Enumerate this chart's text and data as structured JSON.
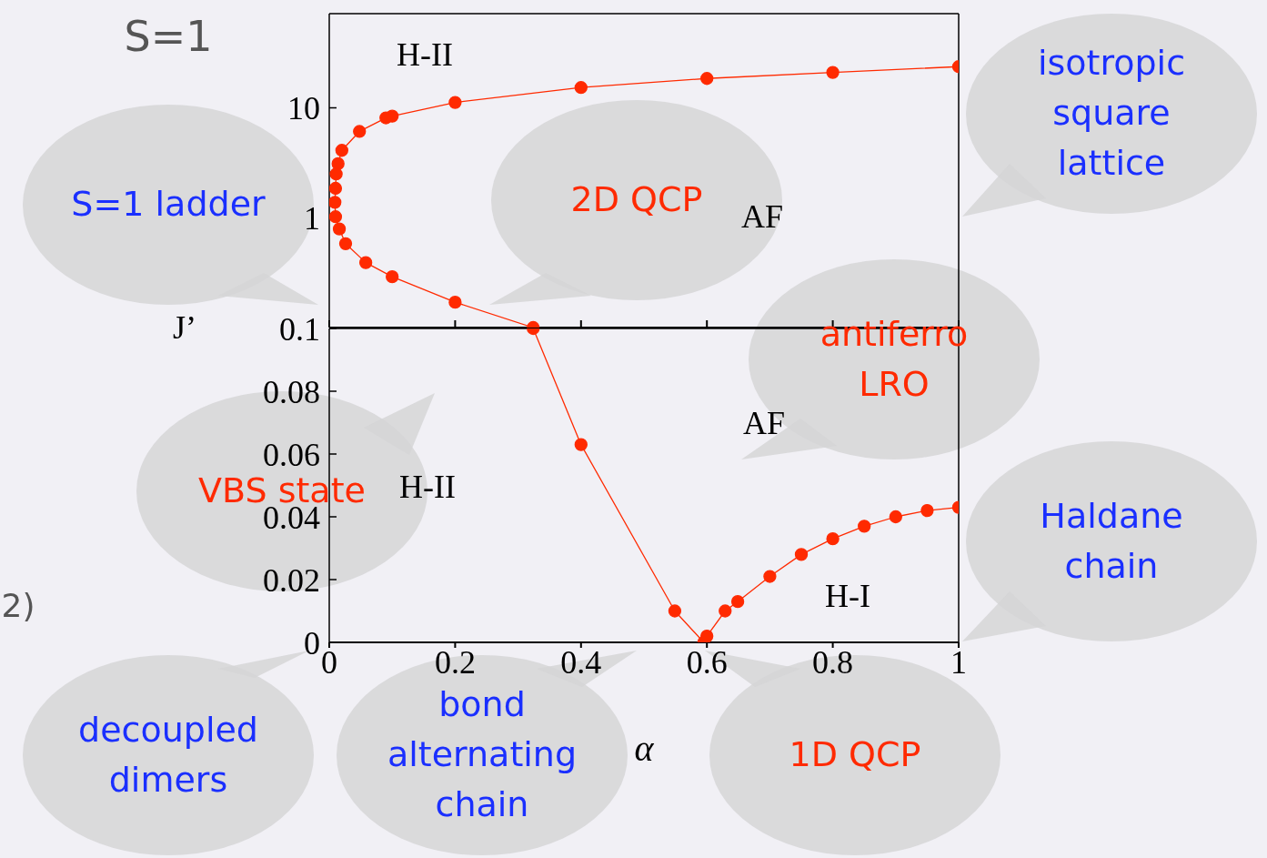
{
  "chart_data": [
    {
      "type": "line",
      "title": "S=1",
      "x": [
        1,
        0.8,
        0.6,
        0.4,
        0.2,
        0.1,
        0.09,
        0.048,
        0.02,
        0.014,
        0.011,
        0.01,
        0.009,
        0.01,
        0.016,
        0.026,
        0.058,
        0.1,
        0.2,
        0.324
      ],
      "series": [
        {
          "color": "#ff2a00",
          "values": [
            23.7,
            21,
            18.5,
            15.3,
            11.2,
            8.4,
            8.1,
            6.1,
            4.1,
            3.1,
            2.5,
            1.85,
            1.38,
            1.02,
            0.79,
            0.58,
            0.39,
            0.29,
            0.17,
            0.1
          ]
        }
      ],
      "log": true,
      "xlim": [
        0,
        1
      ],
      "xticks": [
        {
          "value": 0,
          "label": null
        },
        {
          "value": 0.2,
          "label": null
        },
        {
          "value": 0.4,
          "label": null
        },
        {
          "value": 0.6,
          "label": null
        },
        {
          "value": 0.8,
          "label": null
        },
        {
          "value": 1,
          "label": null
        }
      ],
      "ylim": [
        0.1,
        72
      ],
      "yticks": [
        {
          "value": 0.1,
          "label": null
        },
        1,
        10
      ],
      "tick_labels": "y",
      "marker": "circle",
      "line_style": "solid",
      "annotations": [
        "H-II",
        "AF",
        "S=1 ladder",
        "2D QCP",
        "isotropic square lattice"
      ]
    },
    {
      "type": "line",
      "xlabel": "α",
      "ylabel": "J’",
      "x": [
        0.324,
        0.4,
        0.549,
        0.595,
        0.6,
        0.629,
        0.649,
        0.7,
        0.75,
        0.8,
        0.85,
        0.9,
        0.95,
        1
      ],
      "series": [
        {
          "color": "#ff2a00",
          "values": [
            0.1,
            0.063,
            0.01,
            0,
            0.002,
            0.01,
            0.013,
            0.021,
            0.028,
            0.033,
            0.037,
            0.04,
            0.042,
            0.043
          ]
        }
      ],
      "xlim": [
        0,
        1
      ],
      "xticks": [
        0,
        0.2,
        0.4,
        0.6,
        0.8,
        1
      ],
      "ylim": [
        0,
        0.1
      ],
      "yticks": [
        0,
        0.02,
        0.04,
        0.06,
        0.08,
        0.1
      ],
      "marker": "circle",
      "line_style": "solid",
      "annotations": [
        "AF",
        "H-II",
        "H-I",
        "antiferro LRO",
        "VBS state",
        "Haldane chain",
        "decoupled dimers",
        "bond alternating chain",
        "1D QCP",
        "2)"
      ]
    }
  ]
}
